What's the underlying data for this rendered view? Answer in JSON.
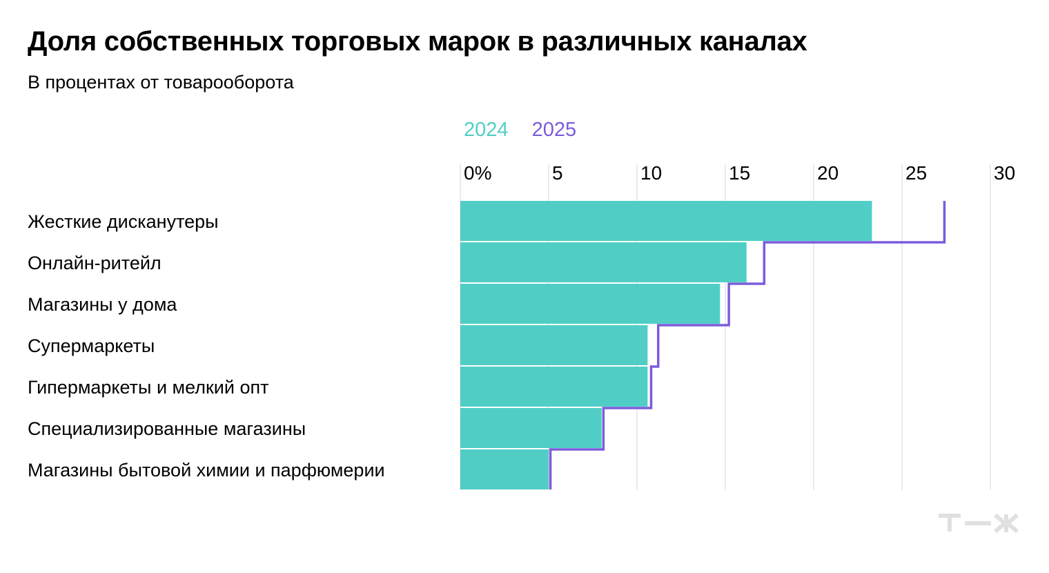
{
  "chart_data": {
    "type": "bar",
    "title": "Доля собственных торговых марок в различных каналах",
    "subtitle": "В процентах от товарооборота",
    "orientation": "horizontal",
    "categories": [
      "Жесткие дисканутеры",
      "Онлайн-ритейл",
      "Магазины у дома",
      "Супермаркеты",
      "Гипермаркеты и мелкий опт",
      "Специализированные магазины",
      "Магазины бытовой химии и парфюмерии"
    ],
    "series": [
      {
        "name": "2024",
        "style": "bars",
        "color": "#50CEC6",
        "values": [
          23.3,
          16.2,
          14.7,
          10.6,
          10.6,
          8.0,
          5.0
        ]
      },
      {
        "name": "2025",
        "style": "step-outline",
        "color": "#7B5BDB",
        "values": [
          27.4,
          17.2,
          15.2,
          11.2,
          10.8,
          8.1,
          5.1
        ]
      }
    ],
    "xlim": [
      0,
      30
    ],
    "ticks": [
      {
        "value": 0,
        "label": "0%"
      },
      {
        "value": 5,
        "label": "5"
      },
      {
        "value": 10,
        "label": "10"
      },
      {
        "value": 15,
        "label": "15"
      },
      {
        "value": 20,
        "label": "20"
      },
      {
        "value": 25,
        "label": "25"
      },
      {
        "value": 30,
        "label": "30"
      }
    ],
    "grid": true,
    "legend_position": "top",
    "gridline_color": "#E4E4E4"
  },
  "logo": {
    "text": "Т—Ж",
    "icon": "tzh-logo-icon",
    "color": "#E0E0E0"
  }
}
